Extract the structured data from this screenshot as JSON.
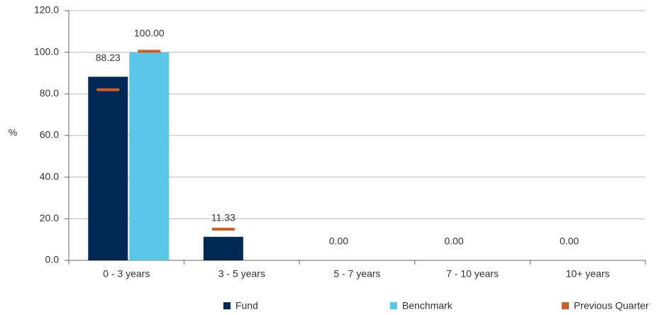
{
  "chart_data": {
    "type": "bar",
    "y_label": "%",
    "categories": [
      "0 - 3 years",
      "3 - 5 years",
      "5 - 7 years",
      "7 - 10 years",
      "10+ years"
    ],
    "series": [
      {
        "name": "Fund",
        "color": "#002855",
        "values": [
          88.23,
          11.33,
          0,
          0,
          0
        ],
        "value_labels": [
          "88.23",
          "11.33",
          "0.00",
          "0.00",
          "0.00"
        ],
        "previous_quarter": [
          82,
          15,
          null,
          null,
          null
        ]
      },
      {
        "name": "Benchmark",
        "color": "#5bc5ea",
        "values": [
          100,
          null,
          null,
          null,
          null
        ],
        "value_labels": [
          "100.00",
          null,
          null,
          null,
          null
        ],
        "previous_quarter": [
          100.5,
          null,
          null,
          null,
          null
        ]
      }
    ],
    "marker": {
      "name": "Previous Quarter",
      "color": "#c8622a"
    },
    "ylim": [
      0,
      120
    ],
    "yticks": [
      {
        "value": 0,
        "label": "0.0"
      },
      {
        "value": 20,
        "label": "20.0"
      },
      {
        "value": 40,
        "label": "40.0"
      },
      {
        "value": 60,
        "label": "60.0"
      },
      {
        "value": 80,
        "label": "80.0"
      },
      {
        "value": 100,
        "label": "100.0"
      },
      {
        "value": 120,
        "label": "120.0"
      }
    ],
    "grid": true
  }
}
